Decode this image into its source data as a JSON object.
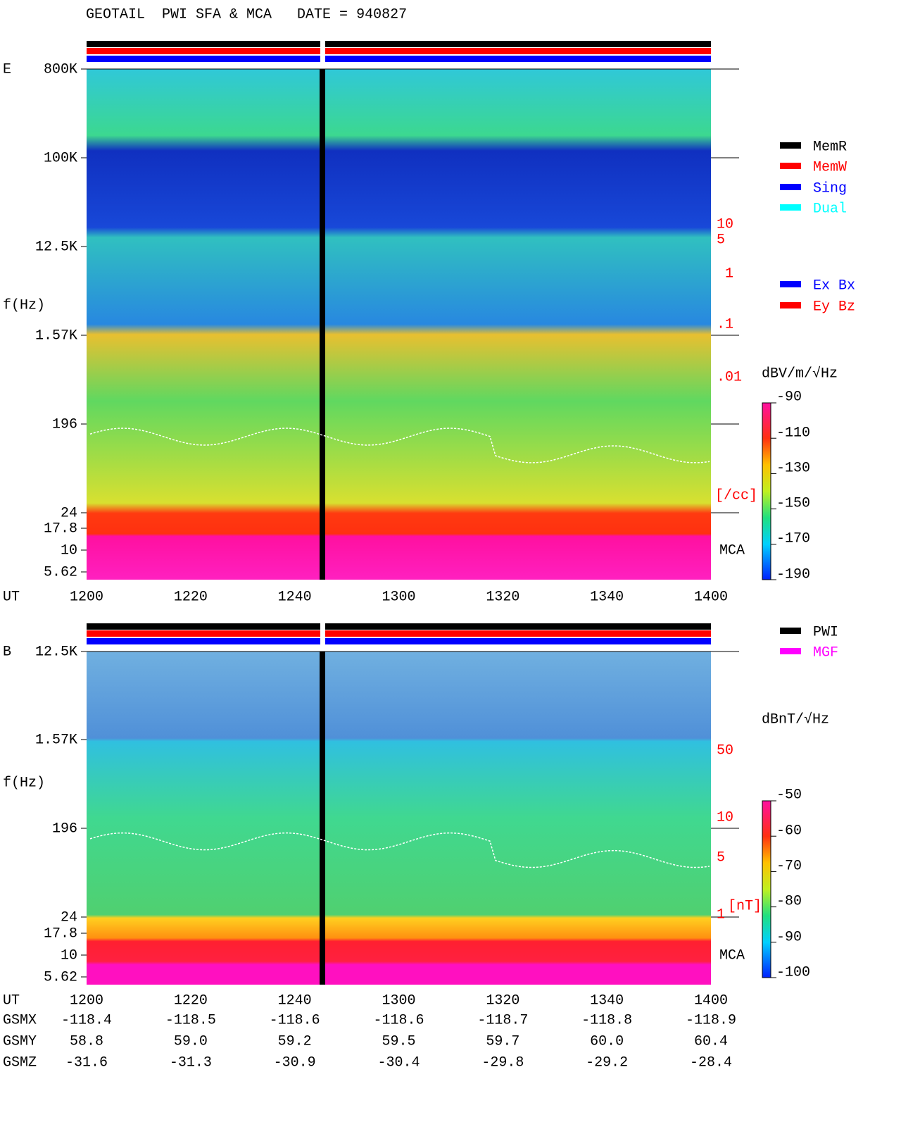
{
  "header": {
    "title": "GEOTAIL  PWI SFA & MCA   DATE = 940827"
  },
  "panels": [
    {
      "id_label": "E",
      "ylabel": "f(Hz)",
      "xlabel": "UT",
      "yticks": [
        "800K",
        "100K",
        "12.5K",
        "1.57K",
        "196",
        "24",
        "17.8",
        "10",
        "5.62"
      ],
      "xticks": [
        "1200",
        "1220",
        "1240",
        "1300",
        "1320",
        "1340",
        "1400"
      ],
      "side_labels": [
        "10",
        "5",
        "1",
        ".1",
        ".01",
        "[/cc]"
      ],
      "mca_label": "MCA",
      "legend": [
        {
          "name": "MemR",
          "color": "#000000"
        },
        {
          "name": "MemW",
          "color": "#ff0000"
        },
        {
          "name": "Sing",
          "color": "#0000ff"
        },
        {
          "name": "Dual",
          "color": "#00ffff"
        }
      ],
      "legend2": [
        {
          "name": "Ex Bx",
          "color": "#0000ff"
        },
        {
          "name": "Ey Bz",
          "color": "#ff0000"
        }
      ],
      "colorbar": {
        "unit": "dBV/m/√Hz",
        "ticks": [
          "-90",
          "-110",
          "-130",
          "-150",
          "-170",
          "-190"
        ]
      }
    },
    {
      "id_label": "B",
      "ylabel": "f(Hz)",
      "xlabel": "UT",
      "yticks": [
        "12.5K",
        "1.57K",
        "196",
        "24",
        "17.8",
        "10",
        "5.62"
      ],
      "xticks": [
        "1200",
        "1220",
        "1240",
        "1300",
        "1320",
        "1340",
        "1400"
      ],
      "side_labels": [
        "50",
        "10",
        "5",
        "1",
        "[nT]"
      ],
      "mca_label": "MCA",
      "legend": [
        {
          "name": "PWI",
          "color": "#000000"
        },
        {
          "name": "MGF",
          "color": "#ff00ff"
        }
      ],
      "colorbar": {
        "unit": "dBnT/√Hz",
        "ticks": [
          "-50",
          "-60",
          "-70",
          "-80",
          "-90",
          "-100"
        ]
      }
    }
  ],
  "orbit": {
    "rows": [
      {
        "label": "GSMX",
        "values": [
          "-118.4",
          "-118.5",
          "-118.6",
          "-118.6",
          "-118.7",
          "-118.8",
          "-118.9"
        ]
      },
      {
        "label": "GSMY",
        "values": [
          "58.8",
          "59.0",
          "59.2",
          "59.5",
          "59.7",
          "60.0",
          "60.4"
        ]
      },
      {
        "label": "GSMZ",
        "values": [
          "-31.6",
          "-31.3",
          "-30.9",
          "-30.4",
          "-29.8",
          "-29.2",
          "-28.4"
        ]
      }
    ]
  }
}
